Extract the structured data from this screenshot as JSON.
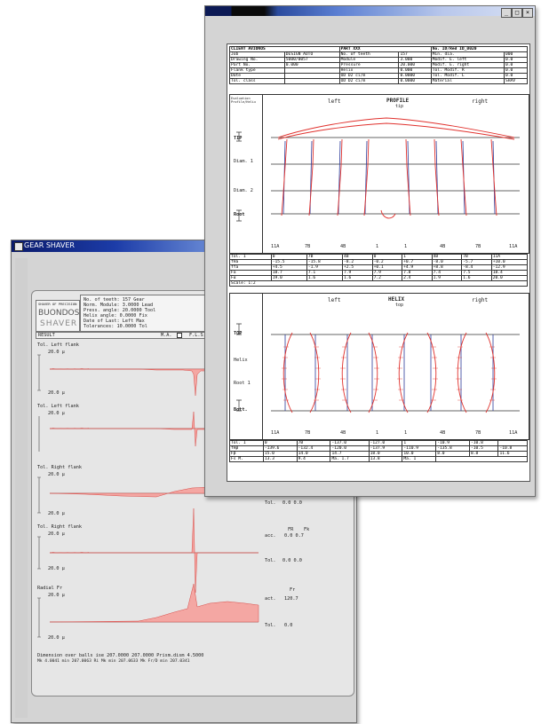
{
  "back_window": {
    "title": "GEAR SHAVER",
    "logo": {
      "line1": "SHAVER OF PRECISION",
      "line2": "BUONDOS",
      "line3": "SHAVER"
    },
    "info_lines": [
      "No. of teeth:  157      Gear",
      "Norm. Module:  3.0000   Lead",
      "Press. angle: 20.0000   Tool",
      "Helix angle:   0.0000   Fix",
      "Date of Last:  Left     Max",
      "Tolerances:   10.0000   Tol"
    ],
    "status_row": {
      "label": "RESULT",
      "opt1": "M.A.",
      "opt2": "F.L.S."
    },
    "sections": [
      {
        "title": "Tol. Left flank",
        "scale_top": "20.0 μ",
        "scale_bottom": "20.0 μ"
      },
      {
        "title": "Tol. Left flank",
        "scale_top": "20.0 μ"
      },
      {
        "title": "Tol. Right flank",
        "scale_top": "20.0 μ",
        "scale_bottom": "20.0 μ",
        "tol_label": "Tol.",
        "tol_values": "0.0   0.0"
      },
      {
        "title": "Tol. Right flank",
        "scale_top": "20.0 μ",
        "scale_bottom": "20.0 μ",
        "col_head1": "FR",
        "col_head2": "Fk",
        "acc_label": "acc.",
        "acc_values": "0.0   0.7",
        "tol_label": "Tol.",
        "tol_values": "0.0   0.0"
      },
      {
        "title": "Radial  Fr",
        "scale_top": "20.0 μ",
        "scale_bottom": "20.0 μ",
        "col_head": "Fr",
        "act_label": "act.",
        "act_value": "120.7",
        "tol_label": "Tol.",
        "tol_value": "0.0"
      }
    ],
    "footer_lines": [
      "Dimension over balls   ise  207.0000 207.0000  Prism.dism   4.5000",
      "Mk  4.0041  min  207.0063 Ri   Mk  min  207.0633 Mk  Fr/D  min    207.0341"
    ]
  },
  "front_window": {
    "header_table": [
      [
        "CLIENT   AVIONOS",
        "",
        "PART    XXX",
        "",
        "No.  ID/Red    ID_0020"
      ],
      [
        "Job",
        "DESIGN AUTO",
        "No. of teeth",
        "157",
        "Min. dia.",
        "000"
      ],
      [
        "Drawing No.",
        "5000/0057",
        "Module",
        "3.000",
        "Modif. E. left",
        "0.0"
      ],
      [
        "Part No.",
        "0.000",
        "Pressure",
        "20.000",
        "Modif. E. right",
        "0.0"
      ],
      [
        "Flank type",
        "",
        "Helix",
        "0.000",
        "Tol. Modif. R",
        "0.0"
      ],
      [
        "Date",
        "",
        "OD D2  ci/m",
        "0.0000",
        "Tol. Modif. L",
        "0.0"
      ],
      [
        "Tol. class",
        "",
        "OD D2  ci/m",
        "0.0000",
        "Material",
        "SHAV"
      ]
    ],
    "profile": {
      "side_label": "Evaluation\nProfile/Helix",
      "left": "left",
      "title": "PROFILE",
      "subtitle": "tip",
      "right": "right",
      "y_labels": [
        "TIP",
        "Diam. 1",
        "Diam. 2",
        "Root"
      ],
      "x_labels": [
        "11A",
        "7B",
        "4B",
        "1",
        "1",
        "4B",
        "7B",
        "11A"
      ],
      "table": [
        [
          "Tol. 1",
          "0",
          "7B",
          "4B",
          "0",
          "1",
          "4B",
          "7B",
          "11A"
        ],
        [
          "fHa",
          "-15.5",
          "-15.8",
          "-8.2",
          "-0.2",
          "+0.7",
          "-8.0",
          "-5.7",
          "+10.0"
        ],
        [
          "ffa",
          "+4.5",
          "-1.9",
          "+2.5",
          "+0.1",
          "+4.9",
          "+8.8",
          "-8.4",
          "-12.9"
        ],
        [
          "Fa",
          "18.7",
          "7.1",
          "7.9",
          "7.9",
          "7.8",
          "7.4",
          "7.5",
          "18.4"
        ],
        [
          "Fα",
          "19.0",
          "1.6",
          "1.6",
          "7.2",
          "2.4",
          "1.9",
          "1.6",
          "20.0"
        ]
      ],
      "scale_label": "Scale: 1:2"
    },
    "helix": {
      "left": "left",
      "title": "HELIX",
      "subtitle": "top",
      "right": "right",
      "y_labels": [
        "TOP",
        "Helix",
        "Root 1",
        "Bott."
      ],
      "x_labels": [
        "11A",
        "7B",
        "4B",
        "1",
        "1",
        "4B",
        "7B",
        "11A"
      ],
      "table": [
        [
          "Tol. 1",
          "0",
          "7B",
          "-137.0",
          "-127.0",
          "1",
          "-10.9",
          "-10.8"
        ],
        [
          "fHβ",
          "-139.6",
          "-132.4",
          "-120.0",
          "-137.9",
          "-110.9",
          "-135.8",
          "-10.5",
          "-10.8"
        ],
        [
          "Fβ",
          "15.0",
          "14.0",
          "14.7",
          "18.0",
          "10.0",
          "8.0",
          "8.8",
          "11.6"
        ],
        [
          "Fs   M.",
          "13.3",
          "9.4",
          "Ma. 1.7",
          "13.8",
          "Ma. 1"
        ]
      ]
    }
  }
}
